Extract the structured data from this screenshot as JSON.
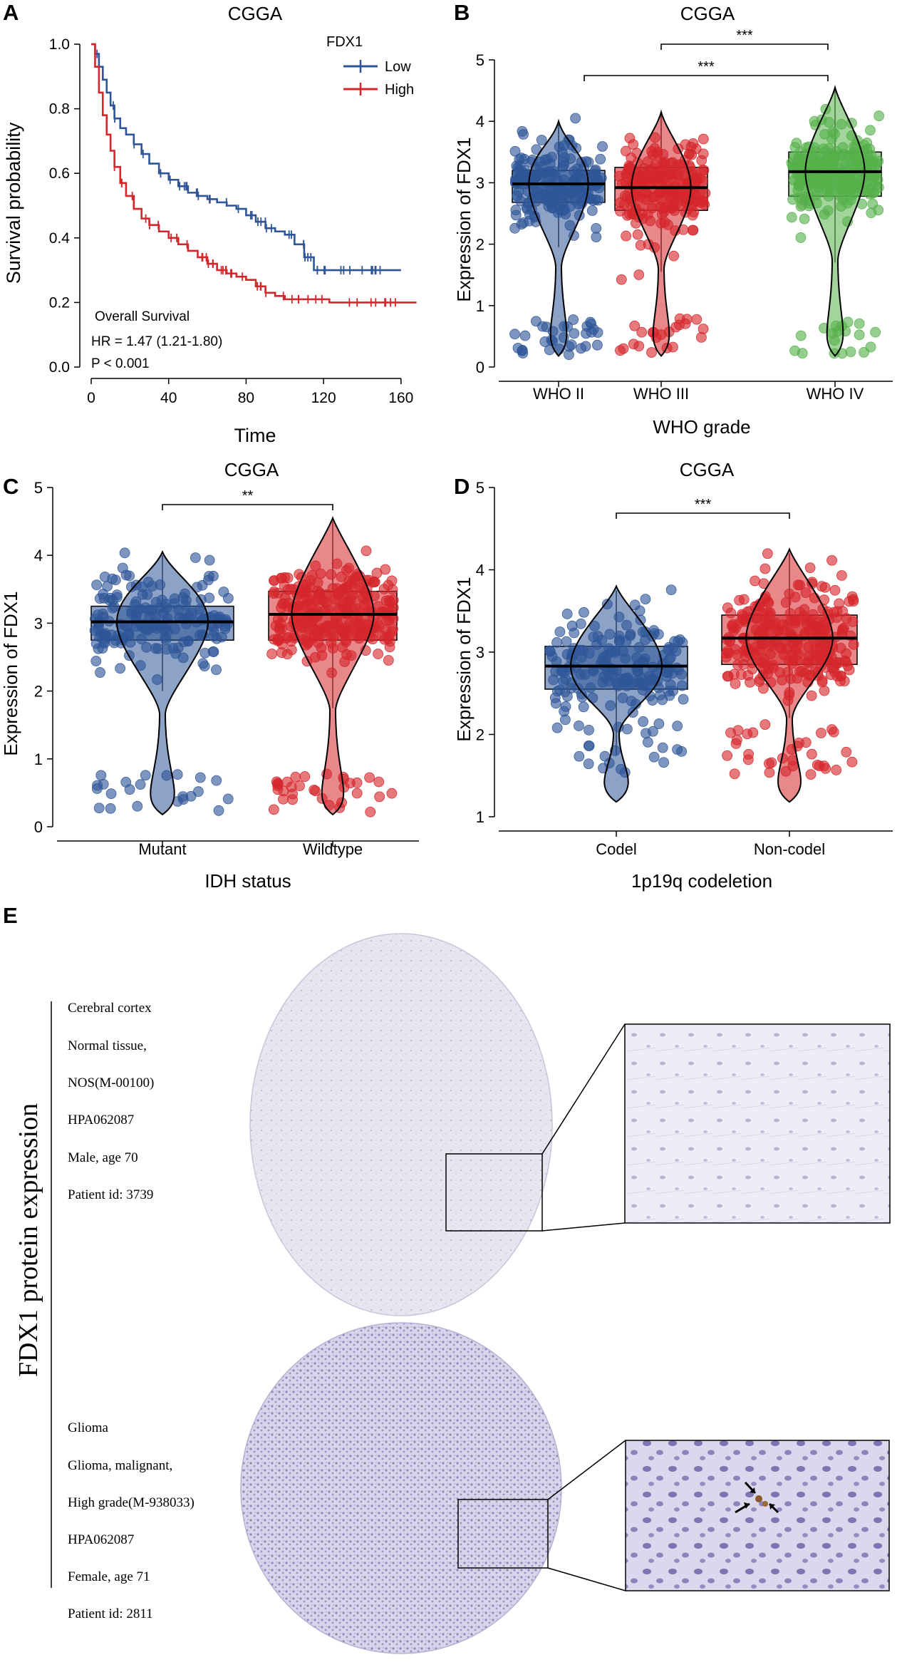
{
  "panels": {
    "a": {
      "letter": "A"
    },
    "b": {
      "letter": "B"
    },
    "c": {
      "letter": "C"
    },
    "d": {
      "letter": "D"
    },
    "e": {
      "letter": "E"
    }
  },
  "colors": {
    "low": "#2e5597",
    "high": "#d5262b",
    "green": "#55b04a",
    "axis": "#000000"
  },
  "chart_data": [
    {
      "id": "A",
      "type": "line",
      "title": "CGGA",
      "xlabel": "Time",
      "ylabel": "Survival probability",
      "xlim": [
        0,
        170
      ],
      "ylim": [
        0,
        1.0
      ],
      "xticks": [
        "0",
        "40",
        "80",
        "120",
        "160"
      ],
      "yticks": [
        "0.0",
        "0.2",
        "0.4",
        "0.6",
        "0.8",
        "1.0"
      ],
      "legend_title": "FDX1",
      "legend": [
        "Low",
        "High"
      ],
      "annotations": [
        "Overall Survival",
        "HR = 1.47 (1.21-1.80)",
        "P < 0.001"
      ],
      "series": [
        {
          "name": "Low",
          "x": [
            0,
            2,
            4,
            6,
            8,
            10,
            12,
            15,
            18,
            22,
            26,
            30,
            35,
            40,
            45,
            50,
            55,
            60,
            65,
            70,
            75,
            80,
            85,
            90,
            95,
            100,
            105,
            110,
            115,
            125,
            140,
            160
          ],
          "y": [
            1.0,
            0.97,
            0.93,
            0.89,
            0.85,
            0.81,
            0.77,
            0.74,
            0.72,
            0.69,
            0.66,
            0.63,
            0.6,
            0.58,
            0.56,
            0.54,
            0.53,
            0.52,
            0.51,
            0.5,
            0.49,
            0.47,
            0.45,
            0.43,
            0.42,
            0.41,
            0.38,
            0.34,
            0.3,
            0.3,
            0.3,
            0.3
          ]
        },
        {
          "name": "High",
          "x": [
            0,
            2,
            4,
            6,
            8,
            10,
            12,
            15,
            18,
            22,
            26,
            30,
            35,
            40,
            45,
            50,
            55,
            60,
            65,
            70,
            75,
            80,
            85,
            90,
            95,
            100,
            105,
            110,
            115,
            120,
            123,
            130,
            150,
            168
          ],
          "y": [
            1.0,
            0.93,
            0.85,
            0.78,
            0.72,
            0.67,
            0.62,
            0.57,
            0.53,
            0.49,
            0.46,
            0.44,
            0.42,
            0.4,
            0.38,
            0.36,
            0.34,
            0.32,
            0.3,
            0.29,
            0.28,
            0.27,
            0.25,
            0.23,
            0.22,
            0.21,
            0.21,
            0.21,
            0.21,
            0.21,
            0.2,
            0.2,
            0.2,
            0.2
          ]
        }
      ]
    },
    {
      "id": "B",
      "type": "box",
      "title": "CGGA",
      "xlabel": "WHO grade",
      "ylabel": "Expression of FDX1",
      "ylim": [
        0,
        5
      ],
      "yticks": [
        "0",
        "1",
        "2",
        "3",
        "4",
        "5"
      ],
      "categories": [
        "WHO II",
        "WHO III",
        "WHO IV"
      ],
      "medians": [
        2.98,
        2.92,
        3.18
      ],
      "q1": [
        2.68,
        2.55,
        2.78
      ],
      "q3": [
        3.2,
        3.25,
        3.5
      ],
      "whisker_low": [
        1.95,
        1.55,
        1.7
      ],
      "whisker_high": [
        3.95,
        4.1,
        4.5
      ],
      "significance": [
        {
          "label": "***",
          "from": "WHO III",
          "to": "WHO IV"
        },
        {
          "label": "***",
          "from": "WHO II",
          "to": "WHO IV"
        }
      ]
    },
    {
      "id": "C",
      "type": "box",
      "title": "CGGA",
      "xlabel": "IDH status",
      "ylabel": "Expression of FDX1",
      "ylim": [
        0,
        5
      ],
      "yticks": [
        "0",
        "1",
        "2",
        "3",
        "4",
        "5"
      ],
      "categories": [
        "Mutant",
        "Wildtype"
      ],
      "medians": [
        3.02,
        3.13
      ],
      "q1": [
        2.75,
        2.75
      ],
      "q3": [
        3.25,
        3.47
      ],
      "whisker_low": [
        2.0,
        1.75
      ],
      "whisker_high": [
        4.0,
        4.5
      ],
      "significance": [
        {
          "label": "**",
          "from": "Mutant",
          "to": "Wildtype"
        }
      ]
    },
    {
      "id": "D",
      "type": "box",
      "title": "CGGA",
      "xlabel": "1p19q codeletion",
      "ylabel": "Expression of FDX1",
      "ylim": [
        1,
        5
      ],
      "yticks": [
        "1",
        "2",
        "3",
        "4",
        "5"
      ],
      "categories": [
        "Codel",
        "Non-codel"
      ],
      "medians": [
        2.83,
        3.17
      ],
      "q1": [
        2.55,
        2.85
      ],
      "q3": [
        3.07,
        3.45
      ],
      "whisker_low": [
        1.75,
        2.2
      ],
      "whisker_high": [
        3.75,
        4.2
      ],
      "significance": [
        {
          "label": "***",
          "from": "Codel",
          "to": "Non-codel"
        }
      ]
    }
  ],
  "panel_e": {
    "side_label": "FDX1 protein expression",
    "normal": [
      "Cerebral cortex",
      "Normal tissue,",
      "NOS(M-00100)",
      "HPA062087",
      "Male, age 70",
      "Patient id: 3739"
    ],
    "glioma": [
      "Glioma",
      "Glioma, malignant,",
      "High grade(M-938033)",
      "HPA062087",
      "Female, age 71",
      "Patient id: 2811"
    ]
  }
}
